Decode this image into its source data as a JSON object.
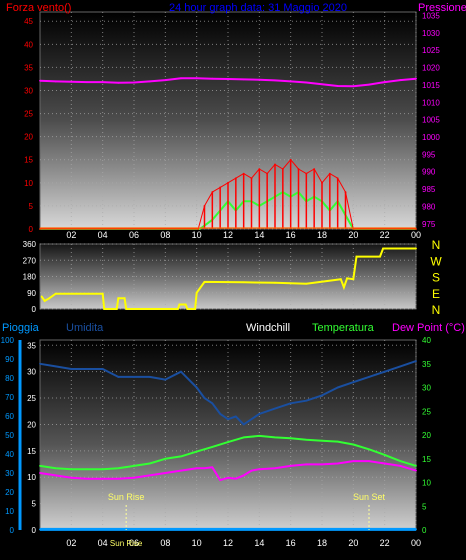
{
  "header": {
    "left_title": "Forza vento()",
    "center_title": "24 hour graph data: 31 Maggio 2020",
    "right_title": "Pressione"
  },
  "colors": {
    "wind_label": "#ff0000",
    "title": "#0000ff",
    "pressure": "#ff00ff",
    "direction": "#ffff00",
    "rain": "#0099ff",
    "humidity": "#1a4fa0",
    "windchill": "#ffffff",
    "temperature": "#33ff33",
    "dewpoint": "#ff00ff",
    "tick_label": "#ffffff"
  },
  "x_labels": [
    "02",
    "04",
    "06",
    "08",
    "10",
    "12",
    "14",
    "16",
    "18",
    "20",
    "22",
    "00"
  ],
  "direction_axis_letters": [
    "N",
    "W",
    "S",
    "E",
    "N"
  ],
  "bottom_header": {
    "rain": "Pioggia",
    "humidity": "Umidita",
    "windchill": "Windchill",
    "temperature": "Temperatura",
    "dewpoint": "Dew Point (°C)"
  },
  "sun": {
    "rise_label": "Sun Rise",
    "set_label": "Sun Set",
    "rise_hour": 5.5,
    "set_hour": 21.0
  },
  "chart_data": [
    {
      "type": "line",
      "panel": "wind-pressure",
      "x_unit": "hours",
      "x_range": [
        0,
        24
      ],
      "y_left": {
        "ticks": [
          0,
          5,
          10,
          15,
          20,
          25,
          30,
          35,
          40,
          45
        ],
        "range": [
          0,
          47
        ]
      },
      "y_right": {
        "ticks": [
          975,
          980,
          985,
          990,
          995,
          1000,
          1005,
          1010,
          1015,
          1020,
          1025,
          1030,
          1035
        ],
        "range": [
          973.5,
          1036
        ]
      },
      "series": [
        {
          "key": "pressure",
          "axis": "right",
          "color": "#ff00ff",
          "x": [
            0,
            1,
            2,
            3,
            4,
            5,
            6,
            7,
            8,
            9,
            10,
            11,
            12,
            13,
            14,
            15,
            16,
            17,
            18,
            19,
            20,
            21,
            22,
            23,
            24
          ],
          "values": [
            1016.2,
            1016.0,
            1015.9,
            1015.8,
            1015.8,
            1015.6,
            1015.7,
            1016.0,
            1016.4,
            1016.9,
            1016.9,
            1016.8,
            1016.7,
            1016.6,
            1016.5,
            1016.3,
            1016.0,
            1015.7,
            1015.2,
            1014.7,
            1014.6,
            1015.1,
            1015.8,
            1016.4,
            1016.8
          ]
        },
        {
          "key": "wind_avg",
          "axis": "left",
          "color": "#33ff33",
          "x": [
            0,
            10.2,
            10.6,
            11,
            11.5,
            12,
            12.5,
            13,
            13.5,
            14,
            14.5,
            15,
            15.5,
            16,
            16.5,
            17,
            17.5,
            18,
            18.5,
            19,
            19.5,
            20,
            24
          ],
          "values": [
            0,
            0,
            1,
            2,
            4,
            6,
            4,
            6,
            6,
            5,
            6,
            7,
            8,
            7,
            8,
            6,
            7,
            6,
            4,
            6,
            3,
            0,
            0
          ]
        },
        {
          "key": "wind_gust",
          "axis": "left",
          "color": "#ff0000",
          "x": [
            0,
            10.1,
            10.5,
            11,
            11.5,
            12,
            12.5,
            13,
            13.5,
            14,
            14.5,
            15,
            15.5,
            16,
            16.5,
            17,
            17.5,
            18,
            18.5,
            19,
            19.5,
            20,
            24
          ],
          "values": [
            0,
            0,
            5,
            8,
            9,
            10,
            11,
            12,
            11,
            13,
            12,
            14,
            13,
            15,
            13,
            12,
            13,
            10,
            12,
            11,
            8,
            0,
            0
          ]
        }
      ]
    },
    {
      "type": "line",
      "panel": "wind-direction",
      "x_unit": "hours",
      "x_range": [
        0,
        24
      ],
      "y_left": {
        "ticks": [
          0,
          90,
          180,
          270,
          360
        ],
        "range": [
          0,
          360
        ]
      },
      "series": [
        {
          "key": "direction",
          "color": "#ffff00",
          "x": [
            0.1,
            0.3,
            0.6,
            1.0,
            4.0,
            4.1,
            4.9,
            5.0,
            5.4,
            5.5,
            8.8,
            8.9,
            9.3,
            9.4,
            9.9,
            10.0,
            10.5,
            13,
            15,
            17,
            19.2,
            19.4,
            19.6,
            20.0,
            20.2,
            21.7,
            21.9,
            24
          ],
          "values": [
            70,
            45,
            60,
            85,
            85,
            0,
            0,
            60,
            60,
            0,
            0,
            25,
            25,
            0,
            0,
            90,
            150,
            148,
            145,
            140,
            165,
            120,
            170,
            165,
            290,
            290,
            335,
            335
          ]
        }
      ]
    },
    {
      "type": "line",
      "panel": "temp-hum-rain",
      "x_unit": "hours",
      "x_range": [
        0,
        24
      ],
      "y_left": {
        "ticks": [
          0,
          10,
          20,
          30,
          40,
          50,
          60,
          70,
          80,
          90,
          100
        ],
        "range": [
          0,
          100
        ]
      },
      "y_inner": {
        "ticks": [
          0,
          5,
          10,
          15,
          20,
          25,
          30,
          35
        ],
        "range": [
          0,
          36
        ]
      },
      "y_right": {
        "ticks": [
          0,
          5,
          10,
          15,
          20,
          25,
          30,
          35,
          40
        ],
        "range": [
          0,
          40
        ]
      },
      "series": [
        {
          "key": "rain",
          "axis": "left",
          "color": "#0099ff",
          "x": [
            0,
            24
          ],
          "values": [
            0.3,
            0.3
          ]
        },
        {
          "key": "humidity",
          "axis": "inner",
          "color": "#1a4fa0",
          "x": [
            0,
            1,
            2,
            3,
            4,
            5,
            6,
            7,
            8,
            9,
            10,
            10.5,
            11,
            11.5,
            12,
            12.5,
            13,
            13.5,
            14,
            15,
            16,
            17,
            18,
            19,
            20,
            21,
            22,
            23,
            24
          ],
          "values": [
            31.5,
            31,
            30.5,
            30.5,
            30.5,
            29,
            29,
            29,
            28.5,
            30,
            27,
            25,
            24,
            22,
            21,
            21.5,
            20,
            21,
            22,
            23,
            24,
            24.5,
            25.5,
            27,
            28,
            29,
            30,
            31,
            32
          ]
        },
        {
          "key": "temperature",
          "axis": "right",
          "color": "#33ff33",
          "x": [
            0,
            1,
            2,
            3,
            4,
            5,
            6,
            7,
            8,
            9,
            10,
            11,
            12,
            13,
            14,
            15,
            16,
            17,
            18,
            19,
            20,
            21,
            22,
            23,
            24
          ],
          "values": [
            13.5,
            13,
            12.8,
            12.8,
            12.8,
            13,
            13.5,
            14,
            15,
            15.5,
            16.5,
            17.5,
            18.5,
            19.5,
            19.8,
            19.5,
            19.3,
            19,
            18.8,
            18.6,
            18,
            17,
            15.8,
            14.5,
            13.5
          ]
        },
        {
          "key": "dewpoint",
          "axis": "right",
          "color": "#ff00ff",
          "x": [
            0,
            1,
            2,
            3,
            4,
            5,
            6,
            7,
            8,
            9,
            10,
            10.5,
            11,
            11.5,
            12,
            12.5,
            13,
            13.5,
            14,
            15,
            16,
            17,
            18,
            19,
            20,
            21,
            22,
            23,
            24
          ],
          "values": [
            12,
            11.5,
            11,
            10.8,
            10.8,
            10.8,
            11,
            11.5,
            12,
            12.5,
            13,
            13,
            13.2,
            10.5,
            11,
            10.8,
            11.5,
            12.5,
            12.8,
            13,
            13.5,
            13.8,
            13.8,
            14,
            14.5,
            14.5,
            14,
            13.5,
            12.5
          ]
        }
      ]
    }
  ]
}
